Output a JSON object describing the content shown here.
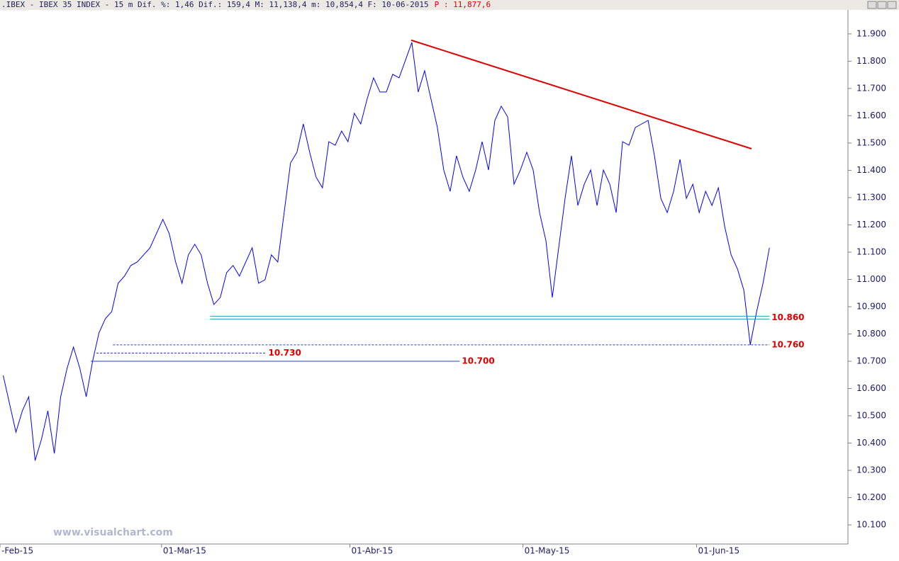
{
  "chart_data": {
    "type": "line",
    "title": ".IBEX - IBEX 35 INDEX -  15 m Dif. %: 1,46 Dif.: 159,4 M: 11,138,4 m: 10,854,4 F: 10-06-2015",
    "title_price": "P : 11,877,6",
    "watermark": "www.visualchart.com",
    "series": [
      {
        "color": "#0000ff",
        "values": [
          10648,
          10544,
          10440,
          10518,
          10570,
          10336,
          10414,
          10518,
          10362,
          10570,
          10674,
          10752,
          10674,
          10570,
          10700,
          10804,
          10856,
          10882,
          10986,
          11012,
          11051,
          11064,
          11090,
          11116,
          11168,
          11220,
          11168,
          11064,
          10986,
          11090,
          11129,
          11090,
          10986,
          10908,
          10934,
          11025,
          11051,
          11012,
          11064,
          11116,
          10986,
          10999,
          11090,
          11064,
          11245,
          11427,
          11466,
          11570,
          11466,
          11375,
          11336,
          11505,
          11492,
          11544,
          11505,
          11609,
          11570,
          11661,
          11739,
          11687,
          11687,
          11752,
          11739,
          11804,
          11869,
          11687,
          11765,
          11661,
          11557,
          11401,
          11323,
          11453,
          11375,
          11323,
          11401,
          11505,
          11401,
          11583,
          11635,
          11596,
          11349,
          11401,
          11466,
          11401,
          11245,
          11142,
          10934,
          11116,
          11297,
          11453,
          11271,
          11349,
          11401,
          11271,
          11401,
          11349,
          11245,
          11505,
          11492,
          11557,
          11570,
          11583,
          11453,
          11297,
          11245,
          11323,
          11440,
          11297,
          11349,
          11245,
          11323,
          11271,
          11336,
          11193,
          11090,
          11038,
          10960,
          10760,
          10882,
          10986,
          11116
        ]
      }
    ],
    "xlim": [
      -0.5,
      132.3
    ],
    "ylim": [
      10030,
      11988
    ],
    "xticks": [
      {
        "value": -0.5,
        "label": "-Feb-15"
      },
      {
        "value": 24.8,
        "label": "01-Mar-15"
      },
      {
        "value": 54.3,
        "label": "01-Abr-15"
      },
      {
        "value": 81.4,
        "label": "01-May-15"
      },
      {
        "value": 108.6,
        "label": "01-Jun-15"
      }
    ],
    "yticks": [
      {
        "value": 11900,
        "label": "11.900"
      },
      {
        "value": 11800,
        "label": "11.800"
      },
      {
        "value": 11700,
        "label": "11.700"
      },
      {
        "value": 11600,
        "label": "11.600"
      },
      {
        "value": 11500,
        "label": "11.500"
      },
      {
        "value": 11400,
        "label": "11.400"
      },
      {
        "value": 11300,
        "label": "11.300"
      },
      {
        "value": 11200,
        "label": "11.200"
      },
      {
        "value": 11100,
        "label": "11.100"
      },
      {
        "value": 11000,
        "label": "11.000"
      },
      {
        "value": 10900,
        "label": "10.900"
      },
      {
        "value": 10800,
        "label": "10.800"
      },
      {
        "value": 10700,
        "label": "10.700"
      },
      {
        "value": 10600,
        "label": "10.600"
      },
      {
        "value": 10500,
        "label": "10.500"
      },
      {
        "value": 10400,
        "label": "10.400"
      },
      {
        "value": 10300,
        "label": "10.300"
      },
      {
        "value": 10200,
        "label": "10.200"
      },
      {
        "value": 10100,
        "label": "10.100"
      }
    ],
    "trendline": {
      "color": "#e00000",
      "x": [
        63.9,
        117.2
      ],
      "values": [
        11877,
        11479
      ]
    },
    "levels": [
      {
        "value": 10860,
        "label": "10.860",
        "x": [
          32.4,
          120
        ],
        "style": "double",
        "color": "#20a0b0"
      },
      {
        "value": 10760,
        "label": "10.760",
        "x": [
          17.2,
          120
        ],
        "style": "dashed",
        "color": "#2040c0"
      },
      {
        "value": 10730,
        "label": "10.730",
        "x": [
          14.6,
          41.2
        ],
        "style": "dashed",
        "color": "#2040c0"
      },
      {
        "value": 10700,
        "label": "10.700",
        "x": [
          13.7,
          71.5
        ],
        "style": "solid",
        "color": "#2040c0"
      }
    ]
  }
}
